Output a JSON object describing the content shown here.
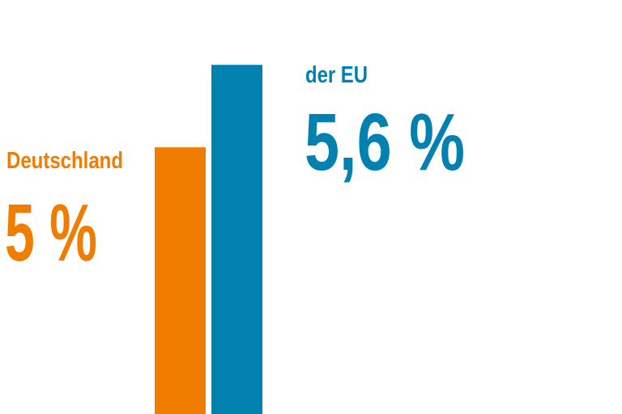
{
  "chart_data": {
    "type": "bar",
    "categories": [
      "Deutschland",
      "der EU"
    ],
    "values": [
      5,
      5.6
    ],
    "value_labels": [
      "5 %",
      "5,6 %"
    ],
    "unit": "%",
    "colors": [
      "#f07c00",
      "#0081b0"
    ],
    "grid": false,
    "legend": "none"
  }
}
